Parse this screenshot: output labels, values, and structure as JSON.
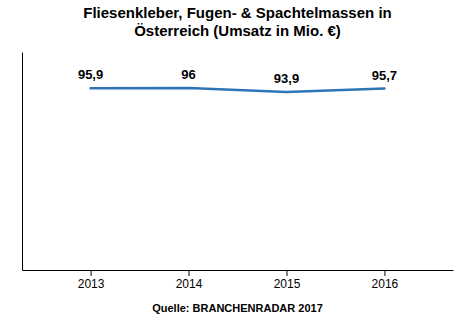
{
  "chart_data": {
    "type": "line",
    "title": "Fliesenkleber, Fugen- & Spachtelmassen in\nÖsterreich (Umsatz in Mio. €)",
    "x": [
      2013,
      2014,
      2015,
      2016
    ],
    "values": [
      95.9,
      96.0,
      93.9,
      95.7
    ],
    "value_labels": [
      "95,9",
      "96",
      "93,9",
      "95,7"
    ],
    "data_labels": true,
    "color": "#2E75B6",
    "xlim": [
      2012.3,
      2016.7
    ],
    "xticks": [
      2013,
      2014,
      2015,
      2016
    ],
    "ylim": [
      0,
      115
    ],
    "tick_labels": "x",
    "grid": false,
    "annotations": [
      "Quelle: BRANCHENRADAR  2017"
    ]
  }
}
